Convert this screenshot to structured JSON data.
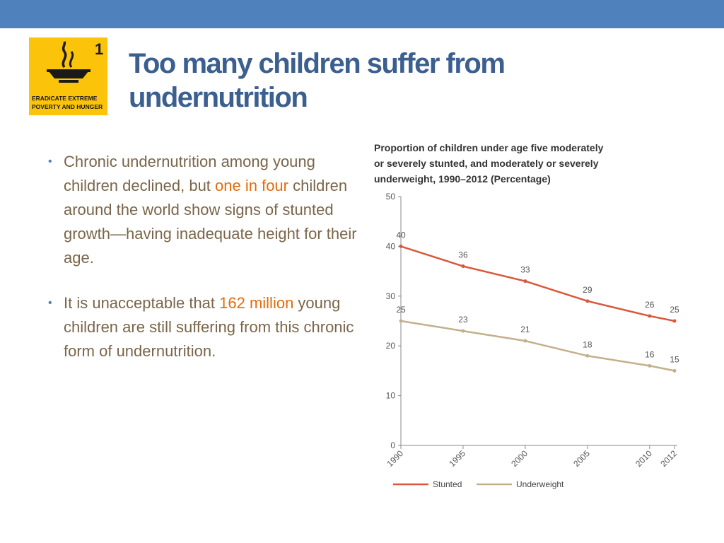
{
  "logo": {
    "number": "1",
    "caption_line1": "ERADICATE EXTREME",
    "caption_line2": "POVERTY AND HUNGER",
    "icon": "soup-bowl-icon",
    "background": "#fcc30b"
  },
  "slide": {
    "title_line1": "Too many children suffer from",
    "title_line2": "undernutrition"
  },
  "bullets": [
    {
      "pre": "Chronic undernutrition among young children declined, but ",
      "highlight": "one in four",
      "post": " children around the world show signs of stunted growth—having inadequate height for their age."
    },
    {
      "pre": "It is unacceptable that ",
      "highlight": "162 million",
      "post": " young children are still suffering from this chronic form of undernutrition."
    }
  ],
  "colors": {
    "topbar": "#4f81bd",
    "title": "#3b5f8f",
    "body_text": "#7a6548",
    "highlight": "#e36c0a",
    "stunted": "#d9583b",
    "underweight": "#c3b08a"
  },
  "chart_data": {
    "type": "line",
    "title_line1": "Proportion of children under age five moderately",
    "title_line2": "or severely stunted, and moderately or severely",
    "title_line3": "underweight, 1990–2012 (Percentage)",
    "x": [
      1990,
      1995,
      2000,
      2005,
      2010,
      2012
    ],
    "xlabel": "",
    "ylabel": "",
    "ylim": [
      0,
      50
    ],
    "yticks": [
      0,
      10,
      20,
      30,
      40,
      50
    ],
    "series": [
      {
        "name": "Stunted",
        "values": [
          40,
          36,
          33,
          29,
          26,
          25
        ],
        "color": "#d9583b"
      },
      {
        "name": "Underweight",
        "values": [
          25,
          23,
          21,
          18,
          16,
          15
        ],
        "color": "#c3b08a"
      }
    ],
    "grid": false,
    "legend": "bottom-left"
  }
}
